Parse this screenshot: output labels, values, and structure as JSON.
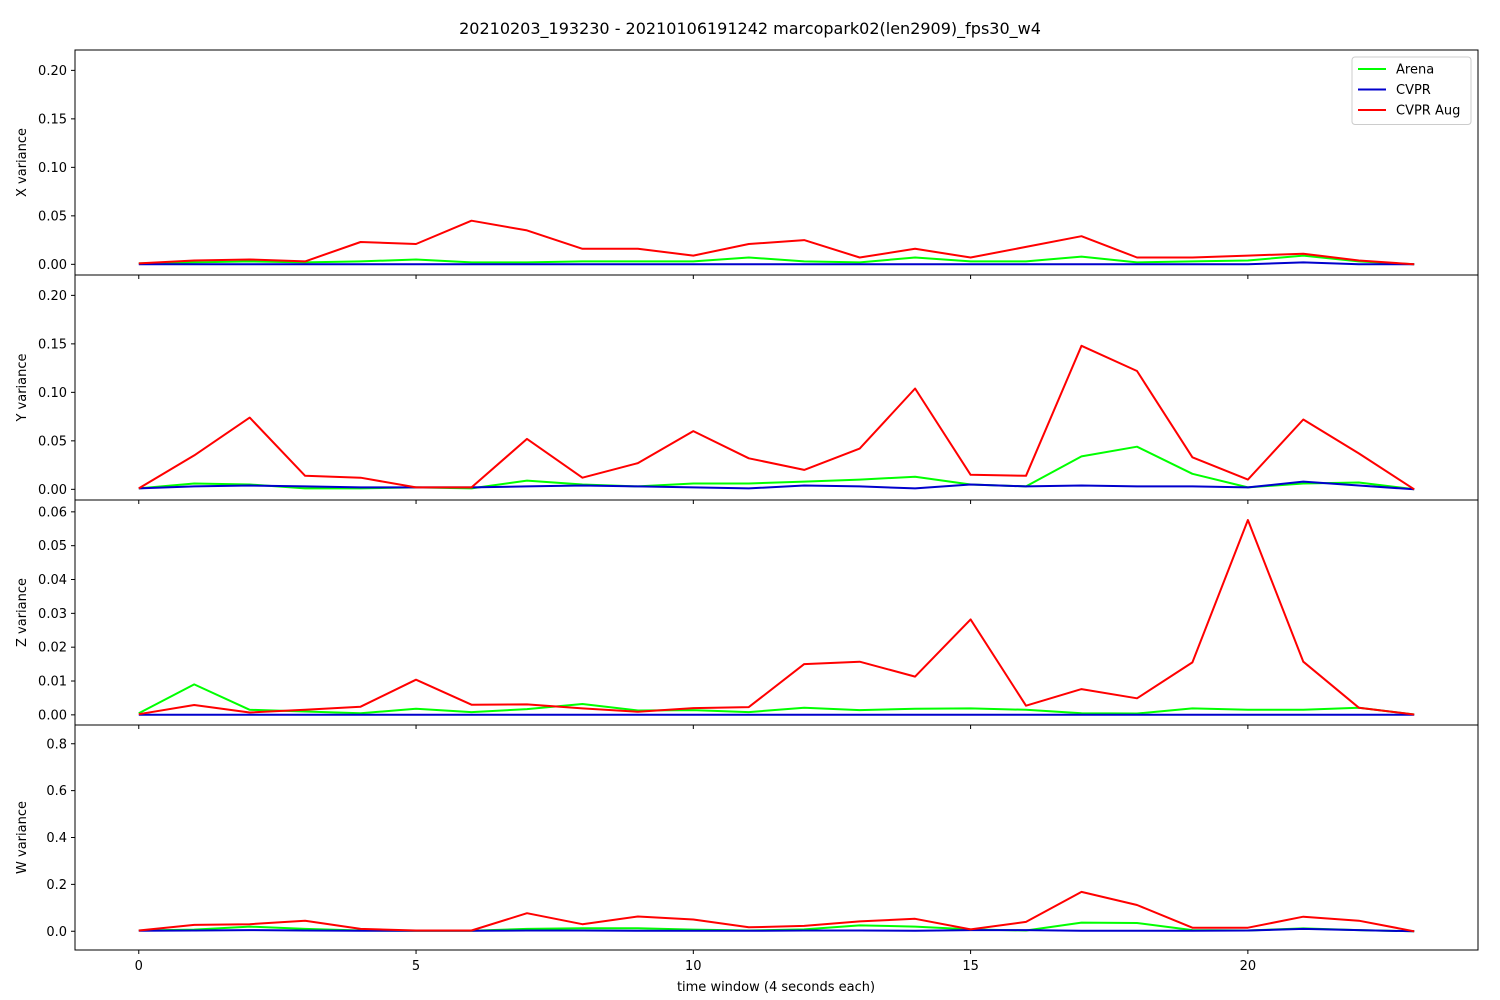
{
  "chart_data": {
    "type": "line",
    "title": "20210203_193230 - 20210106191242 marcopark02(len2909)_fps30_w4",
    "xlabel": "time window (4 seconds each)",
    "x": [
      0,
      1,
      2,
      3,
      4,
      5,
      6,
      7,
      8,
      9,
      10,
      11,
      12,
      13,
      14,
      15,
      16,
      17,
      18,
      19,
      20,
      21,
      22,
      23
    ],
    "xlim": [
      -1.15,
      24.15
    ],
    "xticks": [
      0,
      5,
      10,
      15,
      20
    ],
    "legend": {
      "placement": "top-right",
      "entries": [
        "Arena",
        "CVPR",
        "CVPR Aug"
      ]
    },
    "colors": {
      "Arena": "#00ff00",
      "CVPR": "#0000cc",
      "CVPR Aug": "#ff0000"
    },
    "grid": false,
    "subplots": [
      {
        "ylabel": "X variance",
        "ylim": [
          -0.011,
          0.221
        ],
        "yticks": [
          "0.00",
          "0.05",
          "0.10",
          "0.15",
          "0.20"
        ],
        "series": [
          {
            "name": "Arena",
            "values": [
              0.001,
              0.002,
              0.003,
              0.002,
              0.003,
              0.005,
              0.002,
              0.002,
              0.003,
              0.003,
              0.003,
              0.007,
              0.003,
              0.002,
              0.007,
              0.003,
              0.003,
              0.008,
              0.002,
              0.003,
              0.004,
              0.009,
              0.003,
              0.0
            ]
          },
          {
            "name": "CVPR",
            "values": [
              0,
              0,
              0,
              0,
              0,
              0,
              0,
              0,
              0,
              0,
              0,
              0,
              0,
              0,
              0,
              0,
              0,
              0,
              0,
              0,
              0,
              0.002,
              0,
              0
            ]
          },
          {
            "name": "CVPR Aug",
            "values": [
              0.001,
              0.004,
              0.005,
              0.003,
              0.023,
              0.021,
              0.045,
              0.035,
              0.016,
              0.016,
              0.009,
              0.021,
              0.025,
              0.007,
              0.016,
              0.007,
              0.018,
              0.029,
              0.007,
              0.007,
              0.009,
              0.011,
              0.004,
              0.0
            ]
          }
        ]
      },
      {
        "ylabel": "Y variance",
        "ylim": [
          -0.011,
          0.221
        ],
        "yticks": [
          "0.00",
          "0.05",
          "0.10",
          "0.15",
          "0.20"
        ],
        "series": [
          {
            "name": "Arena",
            "values": [
              0.001,
              0.006,
              0.005,
              0.001,
              0.001,
              0.002,
              0.001,
              0.009,
              0.005,
              0.003,
              0.006,
              0.006,
              0.008,
              0.01,
              0.013,
              0.005,
              0.003,
              0.034,
              0.044,
              0.016,
              0.002,
              0.006,
              0.007,
              0.0
            ]
          },
          {
            "name": "CVPR",
            "values": [
              0.001,
              0.003,
              0.004,
              0.003,
              0.002,
              0.002,
              0.002,
              0.003,
              0.004,
              0.003,
              0.002,
              0.001,
              0.004,
              0.003,
              0.001,
              0.005,
              0.003,
              0.004,
              0.003,
              0.003,
              0.002,
              0.008,
              0.004,
              0.0
            ]
          },
          {
            "name": "CVPR Aug",
            "values": [
              0.001,
              0.035,
              0.074,
              0.014,
              0.012,
              0.002,
              0.002,
              0.052,
              0.012,
              0.027,
              0.06,
              0.032,
              0.02,
              0.042,
              0.104,
              0.015,
              0.014,
              0.148,
              0.122,
              0.033,
              0.01,
              0.072,
              0.037,
              0.0
            ]
          }
        ]
      },
      {
        "ylabel": "Z variance",
        "ylim": [
          -0.003,
          0.0635
        ],
        "yticks": [
          "0.00",
          "0.01",
          "0.02",
          "0.03",
          "0.04",
          "0.05",
          "0.06"
        ],
        "series": [
          {
            "name": "Arena",
            "values": [
              0.0005,
              0.009,
              0.0015,
              0.001,
              0.0005,
              0.0018,
              0.0008,
              0.0017,
              0.0032,
              0.0013,
              0.0014,
              0.0008,
              0.0021,
              0.0014,
              0.0018,
              0.0019,
              0.0015,
              0.0005,
              0.0004,
              0.0019,
              0.0015,
              0.0015,
              0.0021,
              0.0001
            ]
          },
          {
            "name": "CVPR",
            "values": [
              0,
              0,
              0,
              0,
              0,
              0,
              0,
              0,
              0,
              0,
              0,
              0,
              0,
              0,
              0,
              0,
              0,
              0,
              0,
              0,
              0,
              0,
              0,
              0
            ]
          },
          {
            "name": "CVPR Aug",
            "values": [
              0.0002,
              0.0029,
              0.0007,
              0.0015,
              0.0024,
              0.0104,
              0.003,
              0.0031,
              0.0019,
              0.0009,
              0.002,
              0.0023,
              0.015,
              0.0157,
              0.0113,
              0.0282,
              0.0027,
              0.0076,
              0.0049,
              0.0155,
              0.0576,
              0.0157,
              0.0021,
              0.0001
            ]
          }
        ]
      },
      {
        "ylabel": "W variance",
        "ylim": [
          -0.08,
          0.88
        ],
        "yticks": [
          "0.0",
          "0.2",
          "0.4",
          "0.6",
          "0.8"
        ],
        "series": [
          {
            "name": "Arena",
            "values": [
              0.003,
              0.007,
              0.02,
              0.01,
              0.003,
              0.002,
              0.002,
              0.01,
              0.013,
              0.013,
              0.007,
              0.003,
              0.008,
              0.025,
              0.02,
              0.008,
              0.003,
              0.037,
              0.035,
              0.005,
              0.003,
              0.012,
              0.005,
              0.0
            ]
          },
          {
            "name": "CVPR",
            "values": [
              0.002,
              0.003,
              0.005,
              0.003,
              0.002,
              0.002,
              0.002,
              0.003,
              0.003,
              0.002,
              0.002,
              0.002,
              0.003,
              0.003,
              0.002,
              0.005,
              0.005,
              0.002,
              0.002,
              0.002,
              0.003,
              0.01,
              0.005,
              0.0
            ]
          },
          {
            "name": "CVPR Aug",
            "values": [
              0.003,
              0.027,
              0.03,
              0.045,
              0.01,
              0.003,
              0.003,
              0.077,
              0.03,
              0.063,
              0.05,
              0.017,
              0.023,
              0.042,
              0.053,
              0.008,
              0.04,
              0.168,
              0.112,
              0.015,
              0.015,
              0.062,
              0.045,
              0.0
            ]
          }
        ]
      }
    ]
  }
}
